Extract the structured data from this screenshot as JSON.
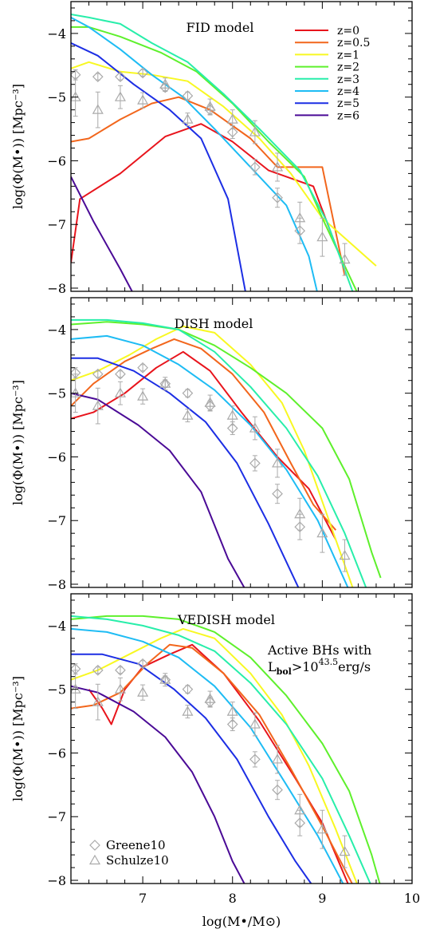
{
  "chart_data": [
    {
      "type": "line",
      "title": "FID model",
      "xlabel": "",
      "ylabel": "log(Φ(M•)) [Mpc⁻³]",
      "xlim": [
        6.2,
        10.0
      ],
      "ylim": [
        -8.05,
        -3.5
      ],
      "xticks": [
        "7",
        "8",
        "9",
        "10"
      ],
      "yticks": [
        "−4",
        "−5",
        "−6",
        "−7",
        "−8"
      ],
      "legend": {
        "placement": "top-right",
        "entries": [
          {
            "label": "z=0",
            "color": "#e8141c"
          },
          {
            "label": "z=0.5",
            "color": "#f2661c"
          },
          {
            "label": "z=1",
            "color": "#f8f822"
          },
          {
            "label": "z=2",
            "color": "#5ef02c"
          },
          {
            "label": "z=3",
            "color": "#28eeaa"
          },
          {
            "label": "z=4",
            "color": "#1ebcf4"
          },
          {
            "label": "z=5",
            "color": "#1c2ee4"
          },
          {
            "label": "z=6",
            "color": "#4a0a96"
          }
        ]
      },
      "series": [
        {
          "name": "z=0",
          "color": "#e8141c",
          "x": [
            6.2,
            6.3,
            6.75,
            7.25,
            7.65,
            8.0,
            8.4,
            8.9,
            9.25
          ],
          "y": [
            -7.6,
            -6.6,
            -6.2,
            -5.62,
            -5.42,
            -5.7,
            -6.15,
            -6.4,
            -7.7
          ]
        },
        {
          "name": "z=0.5",
          "color": "#f2661c",
          "x": [
            6.2,
            6.4,
            6.75,
            7.1,
            7.4,
            7.75,
            8.2,
            8.5,
            8.85,
            9.0,
            9.25
          ],
          "y": [
            -5.7,
            -5.65,
            -5.35,
            -5.1,
            -5.0,
            -5.2,
            -5.65,
            -6.1,
            -6.1,
            -6.1,
            -7.8
          ]
        },
        {
          "name": "z=1",
          "color": "#f8f822",
          "x": [
            6.2,
            6.4,
            6.75,
            7.1,
            7.5,
            7.9,
            8.3,
            8.65,
            9.0,
            9.6
          ],
          "y": [
            -4.55,
            -4.45,
            -4.6,
            -4.65,
            -4.75,
            -5.15,
            -5.65,
            -6.2,
            -6.9,
            -7.65
          ]
        },
        {
          "name": "z=2",
          "color": "#5ef02c",
          "x": [
            6.2,
            6.4,
            6.75,
            7.2,
            7.6,
            8.0,
            8.4,
            8.8,
            9.0,
            9.4
          ],
          "y": [
            -3.9,
            -3.9,
            -4.05,
            -4.3,
            -4.6,
            -5.1,
            -5.7,
            -6.25,
            -6.9,
            -8.1
          ]
        },
        {
          "name": "z=3",
          "color": "#28eeaa",
          "x": [
            6.2,
            6.4,
            6.75,
            7.1,
            7.5,
            7.9,
            8.3,
            8.75,
            9.05,
            9.35
          ],
          "y": [
            -3.7,
            -3.75,
            -3.85,
            -4.15,
            -4.45,
            -4.95,
            -5.5,
            -6.15,
            -6.95,
            -8.1
          ]
        },
        {
          "name": "z=4",
          "color": "#1ebcf4",
          "x": [
            6.2,
            6.4,
            6.75,
            7.1,
            7.45,
            7.8,
            8.2,
            8.6,
            8.85,
            8.95
          ],
          "y": [
            -3.75,
            -3.9,
            -4.25,
            -4.65,
            -5.0,
            -5.5,
            -6.1,
            -6.7,
            -7.5,
            -8.1
          ]
        },
        {
          "name": "z=5",
          "color": "#1c2ee4",
          "x": [
            6.2,
            6.5,
            6.9,
            7.3,
            7.65,
            7.95,
            8.15
          ],
          "y": [
            -4.15,
            -4.35,
            -4.8,
            -5.2,
            -5.65,
            -6.6,
            -8.1
          ]
        },
        {
          "name": "z=6",
          "color": "#4a0a96",
          "x": [
            6.2,
            6.45,
            6.75,
            6.9
          ],
          "y": [
            -6.25,
            -6.95,
            -7.7,
            -8.1
          ]
        }
      ],
      "observations": [
        {
          "name": "Greene10",
          "marker": "diamond",
          "x": [
            6.25,
            6.5,
            6.75,
            7.0,
            7.25,
            7.5,
            7.75,
            8.0,
            8.25,
            8.5,
            8.75
          ],
          "y": [
            -4.65,
            -4.68,
            -4.68,
            -4.62,
            -4.85,
            -4.98,
            -5.2,
            -5.55,
            -6.1,
            -6.58,
            -7.1
          ],
          "err": [
            0.08,
            0.05,
            0.05,
            0.05,
            0.06,
            0.06,
            0.08,
            0.1,
            0.12,
            0.15,
            0.2
          ]
        },
        {
          "name": "Schulze10",
          "marker": "triangle",
          "x": [
            6.25,
            6.5,
            6.75,
            7.0,
            7.25,
            7.5,
            7.75,
            8.0,
            8.25,
            8.5,
            8.75,
            9.0,
            9.25
          ],
          "y": [
            -5.0,
            -5.2,
            -5.0,
            -5.05,
            -4.8,
            -5.35,
            -5.15,
            -5.35,
            -5.55,
            -6.1,
            -6.9,
            -7.2,
            -7.55
          ],
          "err": [
            0.3,
            0.28,
            0.18,
            0.12,
            0.1,
            0.1,
            0.12,
            0.15,
            0.18,
            0.22,
            0.25,
            0.3,
            0.25
          ]
        }
      ]
    },
    {
      "type": "line",
      "title": "DISH model",
      "xlabel": "",
      "ylabel": "log(Φ(M•)) [Mpc⁻³]",
      "xlim": [
        6.2,
        10.0
      ],
      "ylim": [
        -8.05,
        -3.5
      ],
      "xticks": [
        "7",
        "8",
        "9",
        "10"
      ],
      "yticks": [
        "−4",
        "−5",
        "−6",
        "−7",
        "−8"
      ],
      "series": [
        {
          "name": "z=0",
          "color": "#e8141c",
          "x": [
            6.2,
            6.45,
            6.8,
            7.15,
            7.45,
            7.75,
            8.1,
            8.5,
            8.85,
            9.15
          ],
          "y": [
            -5.4,
            -5.3,
            -5.0,
            -4.6,
            -4.35,
            -4.65,
            -5.3,
            -6.0,
            -6.5,
            -7.3
          ]
        },
        {
          "name": "z=0.5",
          "color": "#f2661c",
          "x": [
            6.2,
            6.45,
            6.8,
            7.1,
            7.35,
            7.65,
            8.0,
            8.35,
            8.65,
            8.9,
            9.15
          ],
          "y": [
            -5.2,
            -4.85,
            -4.5,
            -4.3,
            -4.15,
            -4.3,
            -4.7,
            -5.3,
            -6.1,
            -6.75,
            -7.15
          ]
        },
        {
          "name": "z=1",
          "color": "#f8f822",
          "x": [
            6.2,
            6.5,
            6.85,
            7.15,
            7.45,
            7.8,
            8.2,
            8.55,
            8.8,
            9.05,
            9.35
          ],
          "y": [
            -4.8,
            -4.65,
            -4.4,
            -4.15,
            -3.95,
            -4.05,
            -4.55,
            -5.15,
            -5.9,
            -6.9,
            -8.1
          ]
        },
        {
          "name": "z=2",
          "color": "#5ef02c",
          "x": [
            6.2,
            6.6,
            7.0,
            7.4,
            7.8,
            8.2,
            8.6,
            9.0,
            9.3,
            9.55,
            9.65
          ],
          "y": [
            -3.92,
            -3.88,
            -3.92,
            -4.0,
            -4.25,
            -4.6,
            -5.0,
            -5.55,
            -6.35,
            -7.5,
            -7.9
          ]
        },
        {
          "name": "z=3",
          "color": "#28eeaa",
          "x": [
            6.2,
            6.6,
            7.0,
            7.4,
            7.8,
            8.2,
            8.6,
            8.95,
            9.25,
            9.5
          ],
          "y": [
            -3.85,
            -3.85,
            -3.9,
            -4.0,
            -4.35,
            -4.9,
            -5.55,
            -6.3,
            -7.2,
            -8.1
          ]
        },
        {
          "name": "z=4",
          "color": "#1ebcf4",
          "x": [
            6.2,
            6.6,
            7.0,
            7.4,
            7.8,
            8.2,
            8.6,
            8.95,
            9.3
          ],
          "y": [
            -4.15,
            -4.1,
            -4.25,
            -4.55,
            -4.95,
            -5.5,
            -6.2,
            -7.0,
            -8.1
          ]
        },
        {
          "name": "z=5",
          "color": "#1c2ee4",
          "x": [
            6.2,
            6.5,
            6.9,
            7.3,
            7.7,
            8.05,
            8.4,
            8.75
          ],
          "y": [
            -4.45,
            -4.45,
            -4.65,
            -5.0,
            -5.45,
            -6.1,
            -7.05,
            -8.1
          ]
        },
        {
          "name": "z=6",
          "color": "#4a0a96",
          "x": [
            6.2,
            6.5,
            6.95,
            7.3,
            7.65,
            7.95,
            8.15
          ],
          "y": [
            -5.0,
            -5.1,
            -5.5,
            -5.9,
            -6.55,
            -7.6,
            -8.1
          ]
        }
      ],
      "observations": [
        {
          "name": "Greene10",
          "marker": "diamond",
          "x": [
            6.25,
            6.5,
            6.75,
            7.0,
            7.25,
            7.5,
            7.75,
            8.0,
            8.25,
            8.5,
            8.75
          ],
          "y": [
            -4.68,
            -4.7,
            -4.7,
            -4.6,
            -4.85,
            -5.0,
            -5.2,
            -5.55,
            -6.1,
            -6.58,
            -7.1
          ],
          "err": [
            0.08,
            0.05,
            0.05,
            0.05,
            0.06,
            0.06,
            0.08,
            0.1,
            0.12,
            0.15,
            0.2
          ]
        },
        {
          "name": "Schulze10",
          "marker": "triangle",
          "x": [
            6.25,
            6.5,
            6.75,
            7.0,
            7.25,
            7.5,
            7.75,
            8.0,
            8.25,
            8.5,
            8.75,
            9.0,
            9.25
          ],
          "y": [
            -5.0,
            -5.2,
            -5.0,
            -5.05,
            -4.85,
            -5.35,
            -5.15,
            -5.35,
            -5.55,
            -6.1,
            -6.9,
            -7.2,
            -7.55
          ],
          "err": [
            0.3,
            0.28,
            0.18,
            0.12,
            0.1,
            0.1,
            0.12,
            0.15,
            0.18,
            0.22,
            0.25,
            0.3,
            0.25
          ]
        }
      ]
    },
    {
      "type": "line",
      "title": "VEDISH model",
      "annotation_line1": "Active BHs with",
      "annotation_lbol": "L",
      "annotation_lbol_sub": "bol",
      "annotation_gt": ">10",
      "annotation_exp": "43.5",
      "annotation_unit": "erg/s",
      "xlabel": "log(M•/M⊙)",
      "ylabel": "log(Φ(M•)) [Mpc⁻³]",
      "xlim": [
        6.2,
        10.0
      ],
      "ylim": [
        -8.05,
        -3.5
      ],
      "xticks": [
        "7",
        "8",
        "9",
        "10"
      ],
      "yticks": [
        "−4",
        "−5",
        "−6",
        "−7",
        "−8"
      ],
      "legend": {
        "placement": "bottom-left",
        "entries": [
          {
            "label": "Greene10",
            "marker": "diamond"
          },
          {
            "label": "Schulze10",
            "marker": "triangle"
          }
        ]
      },
      "series": [
        {
          "name": "z=0",
          "color": "#e8141c",
          "x": [
            6.4,
            6.55,
            6.65,
            6.8,
            7.0,
            7.3,
            7.55,
            7.9,
            8.3,
            8.7,
            9.0,
            9.3
          ],
          "y": [
            -5.0,
            -5.3,
            -5.55,
            -5.0,
            -4.65,
            -4.45,
            -4.3,
            -4.75,
            -5.5,
            -6.4,
            -7.1,
            -8.1
          ]
        },
        {
          "name": "z=0.5",
          "color": "#f2661c",
          "x": [
            6.2,
            6.45,
            6.75,
            7.05,
            7.3,
            7.55,
            7.9,
            8.3,
            8.65,
            9.0,
            9.35
          ],
          "y": [
            -5.3,
            -5.25,
            -5.05,
            -4.6,
            -4.3,
            -4.35,
            -4.75,
            -5.4,
            -6.25,
            -7.15,
            -8.1
          ]
        },
        {
          "name": "z=1",
          "color": "#f8f822",
          "x": [
            6.2,
            6.5,
            6.85,
            7.2,
            7.45,
            7.8,
            8.2,
            8.55,
            8.85,
            9.15,
            9.4
          ],
          "y": [
            -4.85,
            -4.7,
            -4.45,
            -4.2,
            -4.05,
            -4.2,
            -4.75,
            -5.4,
            -6.2,
            -7.2,
            -8.1
          ]
        },
        {
          "name": "z=2",
          "color": "#5ef02c",
          "x": [
            6.2,
            6.6,
            7.0,
            7.4,
            7.8,
            8.2,
            8.6,
            9.0,
            9.3,
            9.55,
            9.65
          ],
          "y": [
            -3.9,
            -3.85,
            -3.85,
            -3.9,
            -4.1,
            -4.5,
            -5.1,
            -5.85,
            -6.6,
            -7.6,
            -8.1
          ]
        },
        {
          "name": "z=3",
          "color": "#28eeaa",
          "x": [
            6.2,
            6.6,
            7.0,
            7.4,
            7.8,
            8.2,
            8.6,
            9.0,
            9.3,
            9.55
          ],
          "y": [
            -3.85,
            -3.9,
            -4.0,
            -4.15,
            -4.4,
            -4.9,
            -5.55,
            -6.4,
            -7.3,
            -8.1
          ]
        },
        {
          "name": "z=4",
          "color": "#1ebcf4",
          "x": [
            6.2,
            6.6,
            7.0,
            7.4,
            7.8,
            8.2,
            8.6,
            8.95,
            9.25
          ],
          "y": [
            -4.05,
            -4.1,
            -4.25,
            -4.5,
            -4.95,
            -5.6,
            -6.5,
            -7.3,
            -8.1
          ]
        },
        {
          "name": "z=5",
          "color": "#1c2ee4",
          "x": [
            6.2,
            6.55,
            6.95,
            7.35,
            7.7,
            8.05,
            8.4,
            8.7,
            8.9
          ],
          "y": [
            -4.45,
            -4.45,
            -4.6,
            -5.0,
            -5.45,
            -6.1,
            -7.0,
            -7.7,
            -8.1
          ]
        },
        {
          "name": "z=6",
          "color": "#4a0a96",
          "x": [
            6.2,
            6.5,
            6.9,
            7.25,
            7.55,
            7.8,
            8.0,
            8.15
          ],
          "y": [
            -4.95,
            -5.05,
            -5.35,
            -5.75,
            -6.3,
            -7.0,
            -7.7,
            -8.1
          ]
        }
      ],
      "observations": [
        {
          "name": "Greene10",
          "marker": "diamond",
          "x": [
            6.25,
            6.5,
            6.75,
            7.0,
            7.25,
            7.5,
            7.75,
            8.0,
            8.25,
            8.5,
            8.75
          ],
          "y": [
            -4.68,
            -4.7,
            -4.7,
            -4.6,
            -4.85,
            -5.0,
            -5.2,
            -5.55,
            -6.1,
            -6.58,
            -7.1
          ],
          "err": [
            0.08,
            0.05,
            0.05,
            0.05,
            0.06,
            0.06,
            0.08,
            0.1,
            0.12,
            0.15,
            0.2
          ]
        },
        {
          "name": "Schulze10",
          "marker": "triangle",
          "x": [
            6.25,
            6.5,
            6.75,
            7.0,
            7.25,
            7.5,
            7.75,
            8.0,
            8.25,
            8.5,
            8.75,
            9.0,
            9.25
          ],
          "y": [
            -5.0,
            -5.2,
            -5.0,
            -5.05,
            -4.85,
            -5.35,
            -5.15,
            -5.35,
            -5.55,
            -6.1,
            -6.9,
            -7.2,
            -7.55
          ],
          "err": [
            0.3,
            0.28,
            0.18,
            0.12,
            0.1,
            0.1,
            0.12,
            0.15,
            0.18,
            0.22,
            0.25,
            0.3,
            0.25
          ]
        }
      ]
    }
  ]
}
